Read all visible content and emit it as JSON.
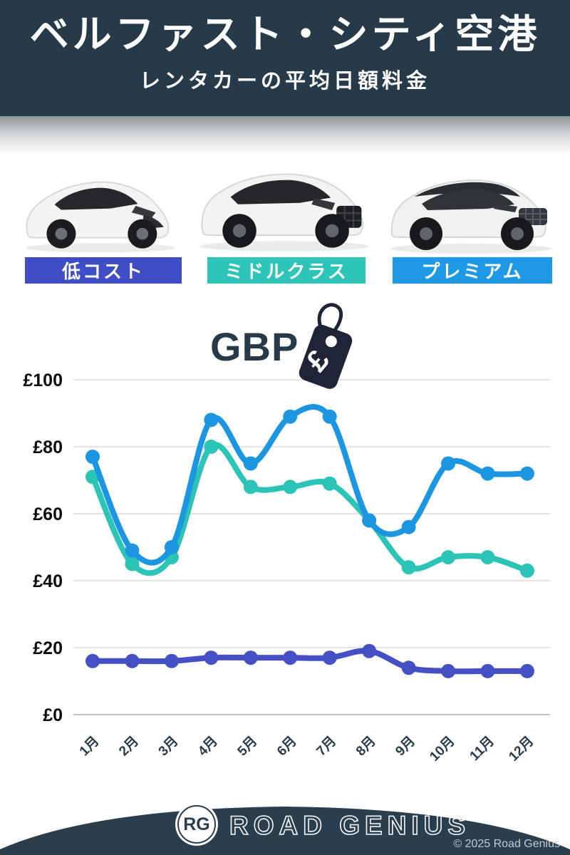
{
  "header": {
    "title": "ベルファスト・シティ空港",
    "subtitle": "レンタカーの平均日額料金"
  },
  "categories": [
    {
      "label": "低コスト",
      "color": "#3f4ec4",
      "car": "compact-hatchback"
    },
    {
      "label": "ミドルクラス",
      "color": "#2cc5b8",
      "car": "mid-size-suv"
    },
    {
      "label": "プレミアム",
      "color": "#1e99e6",
      "car": "premium-suv"
    }
  ],
  "currency": {
    "label": "GBP",
    "symbol": "£"
  },
  "chart_data": {
    "type": "line",
    "categories": [
      "1月",
      "2月",
      "3月",
      "4月",
      "5月",
      "6月",
      "7月",
      "8月",
      "9月",
      "10月",
      "11月",
      "12月"
    ],
    "series": [
      {
        "name": "プレミアム",
        "color": "#1d96e2",
        "values": [
          77,
          49,
          50,
          88,
          75,
          89,
          89,
          58,
          56,
          75,
          72,
          72
        ]
      },
      {
        "name": "ミドルクラス",
        "color": "#2cc4b6",
        "values": [
          71,
          45,
          47,
          80,
          68,
          68,
          69,
          58,
          44,
          47,
          47,
          43
        ]
      },
      {
        "name": "低コスト",
        "color": "#4450c4",
        "values": [
          16,
          16,
          16,
          17,
          17,
          17,
          17,
          19,
          14,
          13,
          13,
          13
        ]
      }
    ],
    "ylabel_prefix": "£",
    "yticks": [
      0,
      20,
      40,
      60,
      80,
      100
    ],
    "ylim": [
      0,
      100
    ],
    "grid": true,
    "legend_position": "badges-above-chart"
  },
  "colors": {
    "header_bg": "#263a49",
    "footer_bg": "#2a3e4e",
    "grid_line": "#dcdcdc",
    "axis_text": "#0c0c10",
    "month_text": "#2b3c4c",
    "gbp_text": "#263a49",
    "tag_fill": "#1f2438"
  },
  "footer": {
    "logo": "RG",
    "brand": "ROAD GENIUS",
    "copyright": "© 2025 Road Genius"
  }
}
